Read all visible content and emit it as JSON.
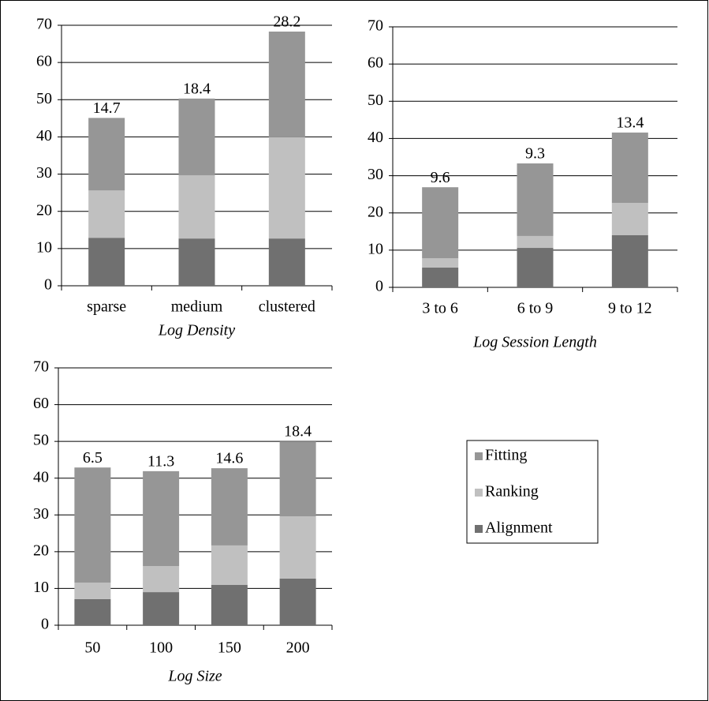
{
  "chart_data": [
    {
      "type": "stacked_bar",
      "x_label": "Log Density",
      "categories": [
        "sparse",
        "medium",
        "clustered"
      ],
      "series": [
        {
          "name": "Alignment",
          "color": "#707070",
          "values": [
            12.9,
            12.7,
            12.7
          ]
        },
        {
          "name": "Ranking",
          "color": "#c0c0c0",
          "values": [
            12.7,
            17,
            27.2
          ]
        },
        {
          "name": "Fitting",
          "color": "#969696",
          "values": [
            19.5,
            20.6,
            28.4
          ]
        }
      ],
      "bar_labels": [
        14.7,
        18.4,
        28.2
      ],
      "ylim": [
        0,
        70
      ],
      "yticks": [
        0,
        10,
        20,
        30,
        40,
        50,
        60,
        70
      ],
      "grid": true
    },
    {
      "type": "stacked_bar",
      "x_label": "Log Session Length",
      "categories": [
        "3 to 6",
        "6 to 9",
        "9 to 12"
      ],
      "series": [
        {
          "name": "Alignment",
          "color": "#707070",
          "values": [
            5.3,
            10.6,
            14
          ]
        },
        {
          "name": "Ranking",
          "color": "#c0c0c0",
          "values": [
            2.5,
            3.2,
            8.7
          ]
        },
        {
          "name": "Fitting",
          "color": "#969696",
          "values": [
            19.1,
            19.5,
            18.9
          ]
        }
      ],
      "bar_labels": [
        9.6,
        9.3,
        13.4
      ],
      "ylim": [
        0,
        70
      ],
      "yticks": [
        0,
        10,
        20,
        30,
        40,
        50,
        60,
        70
      ],
      "grid": true
    },
    {
      "type": "stacked_bar",
      "x_label": "Log Size",
      "categories": [
        "50",
        "100",
        "150",
        "200"
      ],
      "series": [
        {
          "name": "Alignment",
          "color": "#707070",
          "values": [
            7.1,
            9,
            11,
            12.7
          ]
        },
        {
          "name": "Ranking",
          "color": "#c0c0c0",
          "values": [
            4.5,
            7.1,
            10.7,
            16.9
          ]
        },
        {
          "name": "Fitting",
          "color": "#969696",
          "values": [
            31.3,
            25.8,
            21,
            20.4
          ]
        }
      ],
      "bar_labels": [
        6.5,
        11.3,
        14.6,
        18.4
      ],
      "ylim": [
        0,
        70
      ],
      "yticks": [
        0,
        10,
        20,
        30,
        40,
        50,
        60,
        70
      ],
      "grid": true
    }
  ]
}
